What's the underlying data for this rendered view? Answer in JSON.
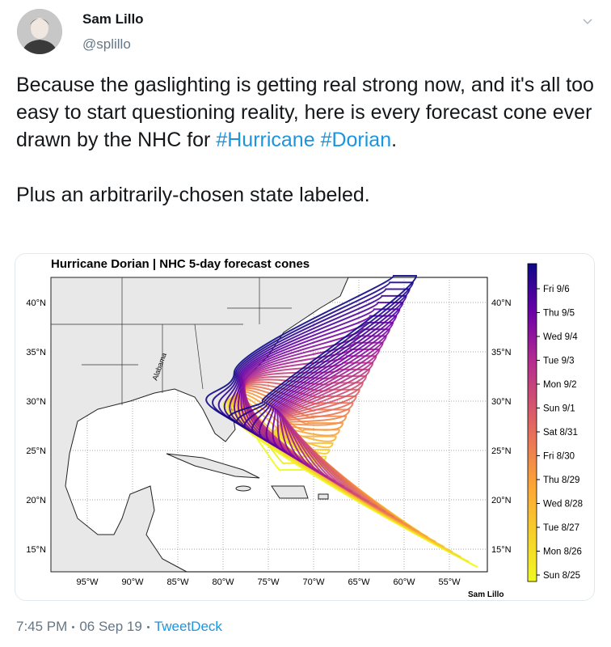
{
  "tweet": {
    "author": {
      "name": "Sam Lillo",
      "handle": "@splillo"
    },
    "paragraph_1": "Because the gaslighting is getting real strong now, and it's all too easy to start questioning reality, here is every forecast cone ever drawn by the NHC for",
    "hashtags": [
      "#Hurricane",
      "#Dorian"
    ],
    "paragraph_1_end": ".",
    "paragraph_2": "Plus an arbitrarily-chosen state labeled.",
    "image": {
      "title": "Hurricane Dorian | NHC 5-day forecast cones",
      "lat_labels": [
        "40°N",
        "35°N",
        "30°N",
        "25°N",
        "20°N",
        "15°N"
      ],
      "lon_labels": [
        "95°W",
        "90°W",
        "85°W",
        "80°W",
        "75°W",
        "70°W",
        "65°W",
        "60°W",
        "55°W"
      ],
      "state_label": "Alabama",
      "credit": "Sam Lillo",
      "colorbar_labels": [
        "Fri 9/6",
        "Thu 9/5",
        "Wed 9/4",
        "Tue 9/3",
        "Mon 9/2",
        "Sun 9/1",
        "Sat 8/31",
        "Fri 8/30",
        "Thu 8/29",
        "Wed 8/28",
        "Tue 8/27",
        "Mon 8/26",
        "Sun 8/25"
      ]
    },
    "time": "7:45 PM",
    "date": "06 Sep 19",
    "source": "TweetDeck"
  }
}
